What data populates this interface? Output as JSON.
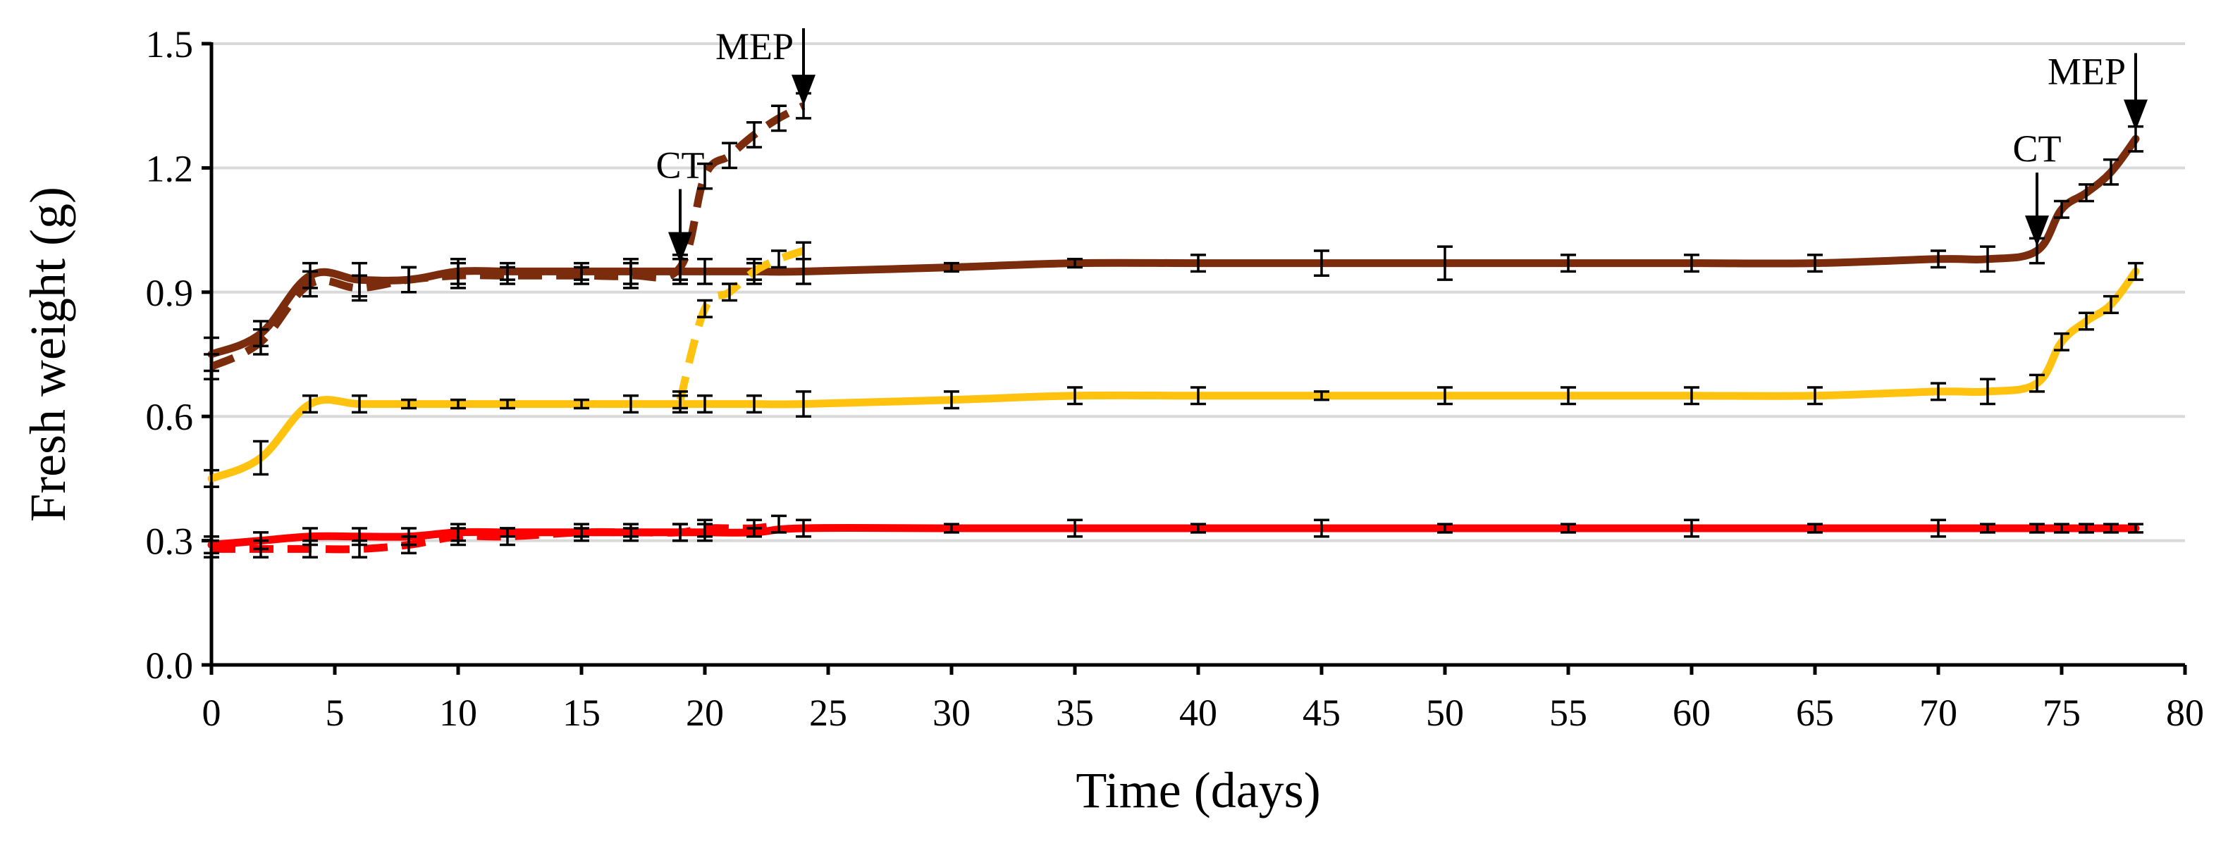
{
  "chart_data": {
    "type": "line",
    "title": "",
    "xlabel": "Time (days)",
    "ylabel": "Fresh weight (g)",
    "xlim": [
      0,
      80
    ],
    "ylim": [
      0,
      1.5
    ],
    "xticks": [
      0,
      5,
      10,
      15,
      20,
      25,
      30,
      35,
      40,
      45,
      50,
      55,
      60,
      65,
      70,
      75,
      80
    ],
    "yticks": [
      0,
      0.3,
      0.6,
      0.9,
      1.2,
      1.5
    ],
    "ytick_labels": [
      "0.0",
      "0.3",
      "0.6",
      "0.9",
      "1.2",
      "1.5"
    ],
    "grid": "horizontal",
    "colors": {
      "brown": "#7b2c0c",
      "yellow": "#ffc20e",
      "red": "#ff0000",
      "axis": "#000000",
      "grid": "#d9d9d9"
    },
    "series": [
      {
        "name": "brown-solid",
        "color": "#7b2c0c",
        "dash": "solid",
        "x": [
          0,
          2,
          4,
          6,
          8,
          10,
          12,
          15,
          17,
          19,
          20,
          22,
          24,
          30,
          35,
          40,
          45,
          50,
          55,
          60,
          65,
          70,
          72,
          74,
          75,
          76,
          77,
          78
        ],
        "y": [
          0.75,
          0.8,
          0.94,
          0.93,
          0.93,
          0.95,
          0.95,
          0.95,
          0.95,
          0.95,
          0.95,
          0.95,
          0.95,
          0.96,
          0.97,
          0.97,
          0.97,
          0.97,
          0.97,
          0.97,
          0.97,
          0.98,
          0.98,
          1.0,
          1.1,
          1.14,
          1.19,
          1.27
        ],
        "err": [
          0.04,
          0.03,
          0.03,
          0.04,
          0.03,
          0.03,
          0.02,
          0.02,
          0.03,
          0.03,
          0.03,
          0.03,
          0.03,
          0.01,
          0.01,
          0.02,
          0.03,
          0.04,
          0.02,
          0.02,
          0.02,
          0.02,
          0.03,
          0.03,
          0.02,
          0.02,
          0.03,
          0.03
        ]
      },
      {
        "name": "brown-dashed",
        "color": "#7b2c0c",
        "dash": "dashed",
        "x": [
          0,
          2,
          4,
          6,
          8,
          10,
          12,
          15,
          17,
          19,
          20,
          21,
          22,
          23,
          24
        ],
        "y": [
          0.72,
          0.78,
          0.92,
          0.91,
          0.93,
          0.94,
          0.94,
          0.94,
          0.94,
          0.96,
          1.18,
          1.23,
          1.28,
          1.32,
          1.35
        ],
        "err": [
          0.03,
          0.03,
          0.03,
          0.03,
          0.03,
          0.03,
          0.02,
          0.02,
          0.03,
          0.03,
          0.03,
          0.03,
          0.03,
          0.03,
          0.03
        ]
      },
      {
        "name": "yellow-solid",
        "color": "#ffc20e",
        "dash": "solid",
        "x": [
          0,
          2,
          4,
          6,
          8,
          10,
          12,
          15,
          17,
          19,
          20,
          22,
          24,
          30,
          35,
          40,
          45,
          50,
          55,
          60,
          65,
          70,
          72,
          74,
          75,
          76,
          77,
          78
        ],
        "y": [
          0.45,
          0.5,
          0.63,
          0.63,
          0.63,
          0.63,
          0.63,
          0.63,
          0.63,
          0.63,
          0.63,
          0.63,
          0.63,
          0.64,
          0.65,
          0.65,
          0.65,
          0.65,
          0.65,
          0.65,
          0.65,
          0.66,
          0.66,
          0.68,
          0.78,
          0.83,
          0.87,
          0.95
        ],
        "err": [
          0.02,
          0.04,
          0.02,
          0.02,
          0.01,
          0.01,
          0.01,
          0.01,
          0.02,
          0.02,
          0.02,
          0.02,
          0.03,
          0.02,
          0.02,
          0.02,
          0.01,
          0.02,
          0.02,
          0.02,
          0.02,
          0.02,
          0.03,
          0.02,
          0.02,
          0.02,
          0.02,
          0.02
        ]
      },
      {
        "name": "yellow-dashed",
        "color": "#ffc20e",
        "dash": "dashed",
        "x": [
          19,
          20,
          21,
          22,
          23,
          24
        ],
        "y": [
          0.64,
          0.86,
          0.9,
          0.95,
          0.98,
          1.0
        ],
        "err": [
          0.02,
          0.02,
          0.02,
          0.02,
          0.02,
          0.02
        ]
      },
      {
        "name": "red-solid",
        "color": "#ff0000",
        "dash": "solid",
        "x": [
          0,
          2,
          4,
          6,
          8,
          10,
          12,
          15,
          17,
          19,
          20,
          22,
          24,
          30,
          35,
          40,
          45,
          50,
          55,
          60,
          65,
          70,
          72,
          74,
          75,
          76,
          77,
          78
        ],
        "y": [
          0.29,
          0.3,
          0.31,
          0.31,
          0.31,
          0.32,
          0.32,
          0.32,
          0.32,
          0.32,
          0.32,
          0.32,
          0.33,
          0.33,
          0.33,
          0.33,
          0.33,
          0.33,
          0.33,
          0.33,
          0.33,
          0.33,
          0.33,
          0.33,
          0.33,
          0.33,
          0.33,
          0.33
        ],
        "err": [
          0.02,
          0.02,
          0.02,
          0.02,
          0.02,
          0.02,
          0.01,
          0.01,
          0.01,
          0.02,
          0.02,
          0.01,
          0.02,
          0.01,
          0.02,
          0.01,
          0.02,
          0.01,
          0.01,
          0.02,
          0.01,
          0.02,
          0.01,
          0.01,
          0.01,
          0.01,
          0.01,
          0.01
        ]
      },
      {
        "name": "red-dashed",
        "color": "#ff0000",
        "dash": "dashed",
        "x": [
          0,
          2,
          4,
          6,
          8,
          10,
          12,
          15,
          17,
          19,
          20,
          22,
          23
        ],
        "y": [
          0.28,
          0.28,
          0.28,
          0.28,
          0.29,
          0.31,
          0.31,
          0.32,
          0.32,
          0.32,
          0.33,
          0.33,
          0.34
        ],
        "err": [
          0.02,
          0.02,
          0.02,
          0.02,
          0.02,
          0.02,
          0.02,
          0.02,
          0.02,
          0.02,
          0.02,
          0.02,
          0.02
        ]
      }
    ],
    "annotations": [
      {
        "label": "CT",
        "x": 19,
        "y": 0.96
      },
      {
        "label": "MEP",
        "x": 24,
        "y": 1.34
      },
      {
        "label": "CT",
        "x": 74,
        "y": 1.0
      },
      {
        "label": "MEP",
        "x": 78,
        "y": 1.28
      }
    ]
  }
}
